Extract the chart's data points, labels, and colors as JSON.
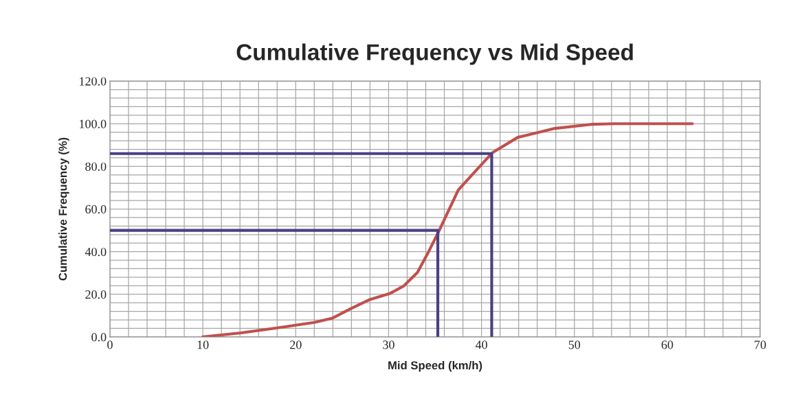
{
  "chart_data": {
    "type": "line",
    "title": "Cumulative Frequency vs Mid Speed",
    "xlabel": "Mid Speed (km/h)",
    "ylabel": "Cumulative Frequency (%)",
    "series": [
      {
        "color": "#c0504d",
        "x": [
          10,
          14.1,
          18,
          22,
          23.9,
          25.9,
          27.9,
          30.1,
          31.6,
          33.1,
          34.3,
          35.4,
          37.5,
          39.5,
          41.2,
          43.9,
          47.9,
          51.8,
          54.3,
          62.7
        ],
        "values": [
          0,
          1.9,
          4.2,
          6.8,
          8.7,
          13.2,
          17.4,
          20.3,
          23.8,
          30.2,
          39.9,
          49.5,
          68.9,
          78.5,
          86.5,
          93.6,
          97.8,
          99.7,
          100,
          100
        ]
      },
      {
        "color": "#4b3f86",
        "x": [
          0,
          35.3,
          35.3
        ],
        "values": [
          50,
          50,
          0
        ]
      },
      {
        "color": "#4b3f86",
        "x": [
          0,
          41.1,
          41.1
        ],
        "values": [
          86,
          86,
          0
        ]
      }
    ],
    "xlim": [
      0,
      70
    ],
    "xticks": [
      0,
      10,
      20,
      30,
      40,
      50,
      60,
      70
    ],
    "ylim": [
      0,
      120
    ],
    "yticks": [
      {
        "value": 0,
        "label": "0.0"
      },
      {
        "value": 20,
        "label": "20.0"
      },
      {
        "value": 40,
        "label": "40.0"
      },
      {
        "value": 60,
        "label": "60.0"
      },
      {
        "value": 80,
        "label": "80.0"
      },
      {
        "value": 100,
        "label": "100.0"
      },
      {
        "value": 120,
        "label": "120.0"
      }
    ],
    "grid": true,
    "legend": false,
    "marker": "none",
    "line_style": "solid"
  }
}
